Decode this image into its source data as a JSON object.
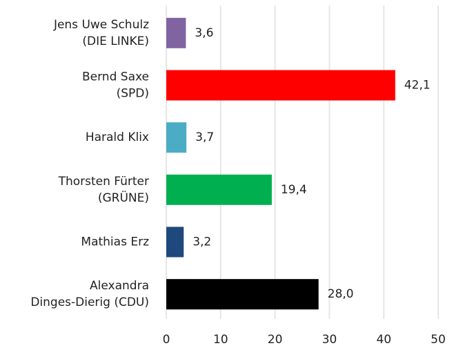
{
  "chart_data": {
    "type": "barh",
    "categories": [
      [
        "Jens Uwe Schulz",
        "(DIE LINKE)"
      ],
      [
        "Bernd Saxe",
        "(SPD)"
      ],
      [
        "Harald Klix"
      ],
      [
        "Thorsten Fürter",
        "(GRÜNE)"
      ],
      [
        "Mathias Erz"
      ],
      [
        "Alexandra",
        "Dinges-Dierig (CDU)"
      ]
    ],
    "values": [
      3.6,
      42.1,
      3.7,
      19.4,
      3.2,
      28.0
    ],
    "value_labels": [
      "3,6",
      "42,1",
      "3,7",
      "19,4",
      "3,2",
      "28,0"
    ],
    "colors": [
      "#8064a2",
      "#ff0000",
      "#4bacc6",
      "#00b050",
      "#1f497d",
      "#000000"
    ],
    "xlim": [
      0,
      50
    ],
    "xticks": [
      0,
      10,
      20,
      30,
      40,
      50
    ],
    "grid": true
  }
}
